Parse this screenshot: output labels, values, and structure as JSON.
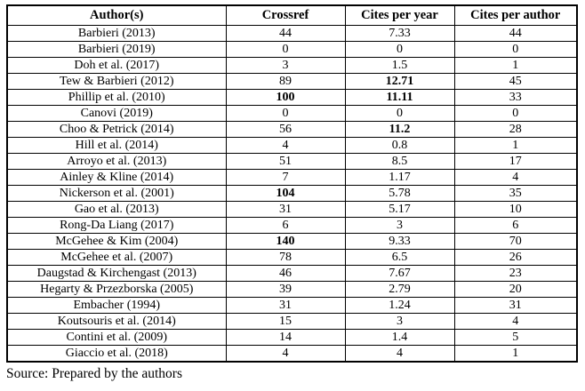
{
  "table": {
    "columns": [
      "Author(s)",
      "Crossref",
      "Cites per year",
      "Cites per author"
    ],
    "rows": [
      {
        "cells": [
          "Barbieri (2013)",
          "44",
          "7.33",
          "44"
        ],
        "bold": []
      },
      {
        "cells": [
          "Barbieri (2019)",
          "0",
          "0",
          "0"
        ],
        "bold": []
      },
      {
        "cells": [
          "Doh et al. (2017)",
          "3",
          "1.5",
          "1"
        ],
        "bold": []
      },
      {
        "cells": [
          "Tew & Barbieri (2012)",
          "89",
          "12.71",
          "45"
        ],
        "bold": [
          2
        ]
      },
      {
        "cells": [
          "Phillip et al. (2010)",
          "100",
          "11.11",
          "33"
        ],
        "bold": [
          1,
          2
        ]
      },
      {
        "cells": [
          "Canovi (2019)",
          "0",
          "0",
          "0"
        ],
        "bold": []
      },
      {
        "cells": [
          "Choo & Petrick (2014)",
          "56",
          "11.2",
          "28"
        ],
        "bold": [
          2
        ]
      },
      {
        "cells": [
          "Hill et al. (2014)",
          "4",
          "0.8",
          "1"
        ],
        "bold": []
      },
      {
        "cells": [
          "Arroyo et al. (2013)",
          "51",
          "8.5",
          "17"
        ],
        "bold": []
      },
      {
        "cells": [
          "Ainley & Kline (2014)",
          "7",
          "1.17",
          "4"
        ],
        "bold": []
      },
      {
        "cells": [
          "Nickerson et al. (2001)",
          "104",
          "5.78",
          "35"
        ],
        "bold": [
          1
        ]
      },
      {
        "cells": [
          "Gao et al. (2013)",
          "31",
          "5.17",
          "10"
        ],
        "bold": []
      },
      {
        "cells": [
          "Rong-Da Liang (2017)",
          "6",
          "3",
          "6"
        ],
        "bold": []
      },
      {
        "cells": [
          "McGehee & Kim (2004)",
          "140",
          "9.33",
          "70"
        ],
        "bold": [
          1
        ]
      },
      {
        "cells": [
          "McGehee et al. (2007)",
          "78",
          "6.5",
          "26"
        ],
        "bold": []
      },
      {
        "cells": [
          "Daugstad & Kirchengast (2013)",
          "46",
          "7.67",
          "23"
        ],
        "bold": []
      },
      {
        "cells": [
          "Hegarty & Przezborska (2005)",
          "39",
          "2.79",
          "20"
        ],
        "bold": []
      },
      {
        "cells": [
          "Embacher (1994)",
          "31",
          "1.24",
          "31"
        ],
        "bold": []
      },
      {
        "cells": [
          "Koutsouris et al. (2014)",
          "15",
          "3",
          "4"
        ],
        "bold": []
      },
      {
        "cells": [
          "Contini et al. (2009)",
          "14",
          "1.4",
          "5"
        ],
        "bold": []
      },
      {
        "cells": [
          "Giaccio et al. (2018)",
          "4",
          "4",
          "1"
        ],
        "bold": []
      }
    ]
  },
  "source_note": "Source: Prepared by the authors"
}
